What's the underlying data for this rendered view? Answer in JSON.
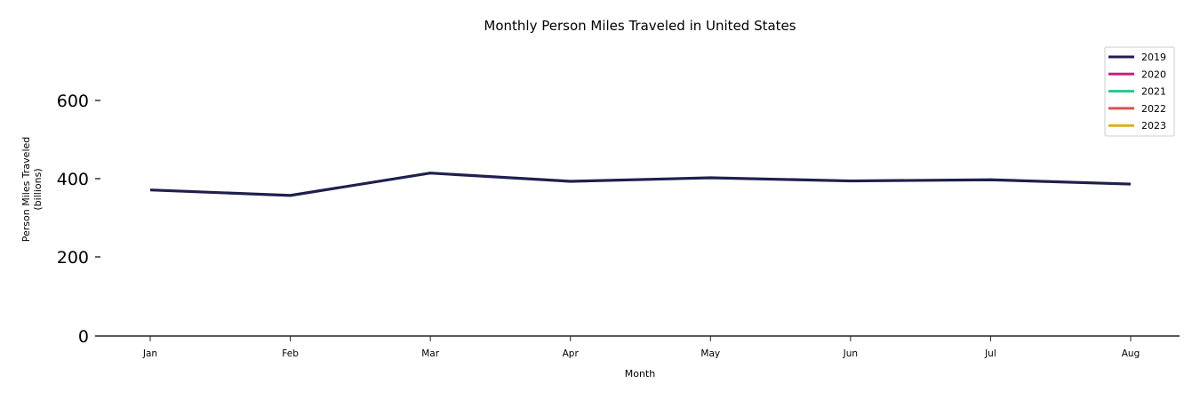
{
  "chart_data": {
    "type": "line",
    "title": "Monthly Person Miles Traveled in United States",
    "xlabel": "Month",
    "ylabel": "Person Miles Traveled\n(billions)",
    "ylabel_line1": "Person Miles Traveled",
    "ylabel_line2": "(billions)",
    "categories": [
      "Jan",
      "Feb",
      "Mar",
      "Apr",
      "May",
      "Jun",
      "Jul",
      "Aug"
    ],
    "series": [
      {
        "name": "2019",
        "color": "#1f1f4f",
        "values": [
          372,
          358,
          415,
          394,
          403,
          395,
          398,
          387
        ]
      },
      {
        "name": "2020",
        "color": "#c2237f",
        "values": []
      },
      {
        "name": "2021",
        "color": "#2ec48e",
        "values": []
      },
      {
        "name": "2022",
        "color": "#d9534a",
        "values": []
      },
      {
        "name": "2023",
        "color": "#dfb020",
        "values": []
      }
    ],
    "yticks": [
      "0",
      "200",
      "400",
      "600"
    ],
    "ylim": [
      0,
      720
    ],
    "grid": false,
    "legend_position": "upper right"
  }
}
